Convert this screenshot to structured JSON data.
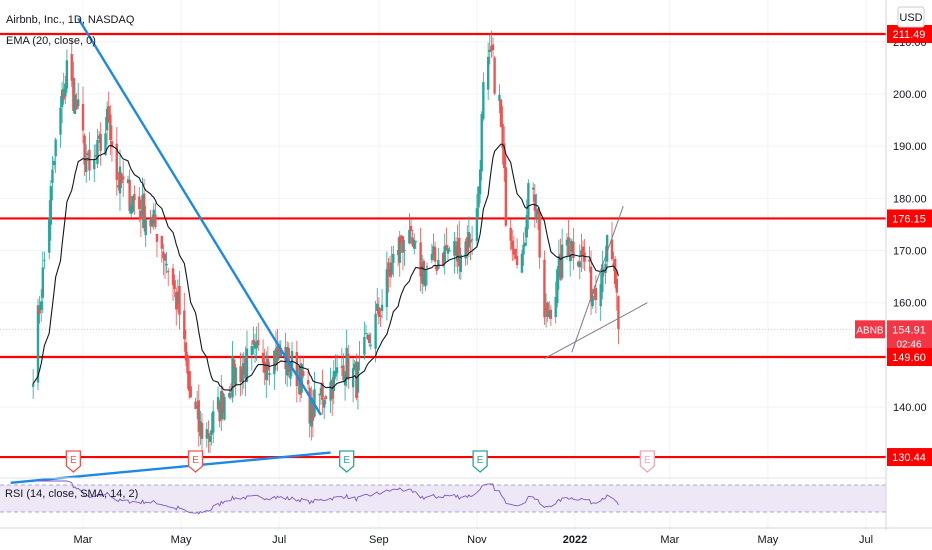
{
  "header": {
    "symbol_line": "Airbnb, Inc., 1D, NASDAQ",
    "indicator_line": "EMA (20, close, 0)"
  },
  "currency_button": "USD",
  "rsi_label": "RSI (14, close, SMA, 14, 2)",
  "colors": {
    "up": "#26a69a",
    "down": "#ef5350",
    "level_red": "#ff0000",
    "trend_blue": "#1e88e5",
    "rsi_line": "#7e57c2",
    "rsi_band": "#ede7f6",
    "earnings_red": "#ef5350",
    "earnings_green": "#26a69a"
  },
  "chart_data": {
    "type": "candlestick",
    "y_axis": {
      "min": 127,
      "max": 218,
      "ticks": [
        140,
        150,
        160,
        170,
        180,
        190,
        200,
        210
      ]
    },
    "x_axis": {
      "ticks": [
        {
          "label": "Mar",
          "date": "2021-03-01"
        },
        {
          "label": "May",
          "date": "2021-05-01"
        },
        {
          "label": "Jul",
          "date": "2021-07-01"
        },
        {
          "label": "Sep",
          "date": "2021-09-01"
        },
        {
          "label": "Nov",
          "date": "2021-11-01"
        },
        {
          "label": "2022",
          "date": "2022-01-01"
        },
        {
          "label": "Mar",
          "date": "2022-03-01"
        },
        {
          "label": "May",
          "date": "2022-05-01"
        },
        {
          "label": "Jul",
          "date": "2022-07-01"
        }
      ]
    },
    "price_labels": [
      {
        "value": 211.49,
        "label": "211.49",
        "kind": "level"
      },
      {
        "value": 176.15,
        "label": "176.15",
        "kind": "level"
      },
      {
        "value": 154.91,
        "label": "154.91",
        "kind": "last",
        "symbol": "ABNB",
        "countdown": "02:46"
      },
      {
        "value": 149.6,
        "label": "149.60",
        "kind": "level"
      },
      {
        "value": 130.44,
        "label": "130.44",
        "kind": "level"
      }
    ],
    "horizontal_levels": [
      211.49,
      176.15,
      149.6,
      130.44
    ],
    "trendlines": [
      {
        "from": [
          "2021-02-26",
          214.5
        ],
        "to": [
          "2021-07-27",
          138.5
        ],
        "color": "blue"
      },
      {
        "from": [
          "2021-01-15",
          125.5
        ],
        "to": [
          "2021-08-02",
          131.3
        ],
        "color": "blue"
      },
      {
        "from": [
          "2021-12-13",
          149.3
        ],
        "to": [
          "2022-02-15",
          160.0
        ],
        "color": "gray"
      },
      {
        "from": [
          "2021-12-30",
          150.5
        ],
        "to": [
          "2022-01-31",
          178.5
        ],
        "color": "gray"
      }
    ],
    "earnings_markers": [
      {
        "date": "2021-02-23",
        "letter": "E",
        "result": "negative"
      },
      {
        "date": "2021-05-10",
        "letter": "E",
        "result": "negative"
      },
      {
        "date": "2021-08-12",
        "letter": "E",
        "result": "positive"
      },
      {
        "date": "2021-11-03",
        "letter": "E",
        "result": "positive"
      },
      {
        "date": "2022-02-15",
        "letter": "E",
        "result": "upcoming"
      }
    ],
    "ema_period": 20,
    "anchors": [
      [
        "2021-01-29",
        148
      ],
      [
        "2021-02-05",
        168
      ],
      [
        "2021-02-12",
        190
      ],
      [
        "2021-02-19",
        205
      ],
      [
        "2021-02-26",
        196
      ],
      [
        "2021-03-05",
        184
      ],
      [
        "2021-03-12",
        190
      ],
      [
        "2021-03-17",
        196
      ],
      [
        "2021-03-22",
        184
      ],
      [
        "2021-03-26",
        182
      ],
      [
        "2021-04-01",
        180
      ],
      [
        "2021-04-09",
        177
      ],
      [
        "2021-04-16",
        174
      ],
      [
        "2021-04-23",
        167
      ],
      [
        "2021-04-30",
        158
      ],
      [
        "2021-05-06",
        143
      ],
      [
        "2021-05-12",
        136
      ],
      [
        "2021-05-18",
        135
      ],
      [
        "2021-05-25",
        140
      ],
      [
        "2021-06-01",
        146
      ],
      [
        "2021-06-10",
        148
      ],
      [
        "2021-06-18",
        150
      ],
      [
        "2021-06-25",
        150
      ],
      [
        "2021-07-02",
        150
      ],
      [
        "2021-07-09",
        148
      ],
      [
        "2021-07-16",
        145
      ],
      [
        "2021-07-21",
        139
      ],
      [
        "2021-07-28",
        143
      ],
      [
        "2021-08-04",
        145
      ],
      [
        "2021-08-11",
        149
      ],
      [
        "2021-08-18",
        145
      ],
      [
        "2021-08-25",
        152
      ],
      [
        "2021-09-01",
        158
      ],
      [
        "2021-09-08",
        166
      ],
      [
        "2021-09-15",
        172
      ],
      [
        "2021-09-22",
        170
      ],
      [
        "2021-09-29",
        166
      ],
      [
        "2021-10-06",
        168
      ],
      [
        "2021-10-13",
        170
      ],
      [
        "2021-10-20",
        170
      ],
      [
        "2021-10-27",
        172
      ],
      [
        "2021-11-01",
        177
      ],
      [
        "2021-11-05",
        200
      ],
      [
        "2021-11-10",
        207
      ],
      [
        "2021-11-15",
        198
      ],
      [
        "2021-11-19",
        178
      ],
      [
        "2021-11-24",
        172
      ],
      [
        "2021-11-30",
        168
      ],
      [
        "2021-12-03",
        185
      ],
      [
        "2021-12-08",
        178
      ],
      [
        "2021-12-13",
        156
      ],
      [
        "2021-12-20",
        163
      ],
      [
        "2021-12-27",
        172
      ],
      [
        "2022-01-03",
        170
      ],
      [
        "2022-01-07",
        168
      ],
      [
        "2022-01-12",
        162
      ],
      [
        "2022-01-18",
        168
      ],
      [
        "2022-01-21",
        170
      ],
      [
        "2022-01-26",
        164
      ],
      [
        "2022-01-28",
        154.91
      ]
    ],
    "rsi_panel": {
      "upper": 70,
      "lower": 30
    }
  }
}
